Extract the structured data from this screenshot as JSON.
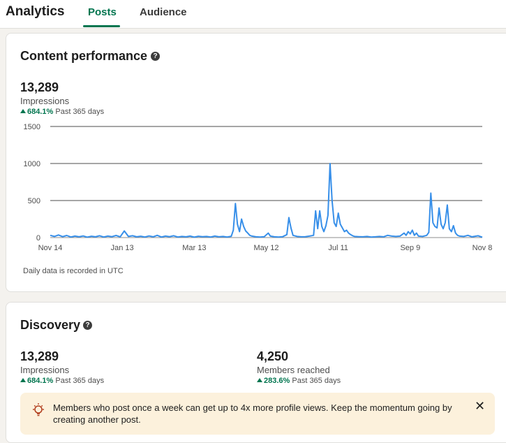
{
  "header": {
    "title": "Analytics",
    "tabs": [
      {
        "label": "Posts",
        "selected": true
      },
      {
        "label": "Audience",
        "selected": false
      }
    ]
  },
  "content_performance": {
    "title": "Content performance",
    "help_icon": "question-circle-icon",
    "impressions_value": "13,289",
    "impressions_label": "Impressions",
    "change_percent": "684.1%",
    "change_period": "Past 365 days",
    "footnote": "Daily data is recorded in UTC"
  },
  "chart_data": {
    "type": "line",
    "title": "",
    "xlabel": "",
    "ylabel": "",
    "ylim": [
      0,
      1500
    ],
    "y_ticks": [
      "1500",
      "1000",
      "500",
      "0"
    ],
    "x_ticks": [
      "Nov 14",
      "Jan 13",
      "Mar 13",
      "May 12",
      "Jul 11",
      "Sep 9",
      "Nov 8"
    ],
    "grid": true,
    "series": [
      {
        "color": "#378fe9",
        "points": [
          [
            0,
            30
          ],
          [
            4,
            15
          ],
          [
            8,
            35
          ],
          [
            12,
            12
          ],
          [
            16,
            28
          ],
          [
            20,
            8
          ],
          [
            24,
            20
          ],
          [
            28,
            10
          ],
          [
            32,
            22
          ],
          [
            36,
            6
          ],
          [
            40,
            18
          ],
          [
            44,
            10
          ],
          [
            48,
            25
          ],
          [
            52,
            8
          ],
          [
            56,
            20
          ],
          [
            60,
            12
          ],
          [
            64,
            28
          ],
          [
            68,
            10
          ],
          [
            72,
            90
          ],
          [
            76,
            15
          ],
          [
            80,
            25
          ],
          [
            84,
            10
          ],
          [
            88,
            18
          ],
          [
            92,
            8
          ],
          [
            96,
            22
          ],
          [
            100,
            10
          ],
          [
            104,
            30
          ],
          [
            108,
            8
          ],
          [
            112,
            20
          ],
          [
            116,
            12
          ],
          [
            120,
            25
          ],
          [
            124,
            8
          ],
          [
            128,
            15
          ],
          [
            132,
            10
          ],
          [
            136,
            20
          ],
          [
            140,
            6
          ],
          [
            144,
            18
          ],
          [
            148,
            12
          ],
          [
            152,
            15
          ],
          [
            156,
            8
          ],
          [
            160,
            20
          ],
          [
            164,
            10
          ],
          [
            168,
            15
          ],
          [
            172,
            8
          ],
          [
            176,
            18
          ],
          [
            178,
            100
          ],
          [
            180,
            460
          ],
          [
            182,
            180
          ],
          [
            184,
            80
          ],
          [
            186,
            250
          ],
          [
            188,
            150
          ],
          [
            190,
            90
          ],
          [
            192,
            60
          ],
          [
            194,
            30
          ],
          [
            196,
            20
          ],
          [
            198,
            15
          ],
          [
            200,
            10
          ],
          [
            204,
            8
          ],
          [
            208,
            12
          ],
          [
            212,
            60
          ],
          [
            214,
            20
          ],
          [
            218,
            10
          ],
          [
            222,
            8
          ],
          [
            226,
            12
          ],
          [
            230,
            40
          ],
          [
            232,
            270
          ],
          [
            234,
            130
          ],
          [
            236,
            30
          ],
          [
            240,
            15
          ],
          [
            244,
            10
          ],
          [
            248,
            12
          ],
          [
            252,
            20
          ],
          [
            256,
            30
          ],
          [
            258,
            360
          ],
          [
            260,
            120
          ],
          [
            262,
            360
          ],
          [
            264,
            150
          ],
          [
            266,
            80
          ],
          [
            268,
            160
          ],
          [
            270,
            300
          ],
          [
            272,
            1000
          ],
          [
            274,
            500
          ],
          [
            276,
            200
          ],
          [
            278,
            150
          ],
          [
            280,
            330
          ],
          [
            282,
            180
          ],
          [
            284,
            130
          ],
          [
            286,
            80
          ],
          [
            288,
            100
          ],
          [
            290,
            60
          ],
          [
            292,
            40
          ],
          [
            294,
            25
          ],
          [
            296,
            15
          ],
          [
            300,
            12
          ],
          [
            304,
            10
          ],
          [
            308,
            15
          ],
          [
            312,
            8
          ],
          [
            316,
            10
          ],
          [
            320,
            15
          ],
          [
            324,
            10
          ],
          [
            328,
            30
          ],
          [
            332,
            20
          ],
          [
            336,
            15
          ],
          [
            340,
            20
          ],
          [
            344,
            60
          ],
          [
            346,
            30
          ],
          [
            348,
            80
          ],
          [
            350,
            50
          ],
          [
            352,
            100
          ],
          [
            354,
            30
          ],
          [
            356,
            60
          ],
          [
            358,
            20
          ],
          [
            362,
            15
          ],
          [
            366,
            30
          ],
          [
            368,
            70
          ],
          [
            370,
            600
          ],
          [
            372,
            200
          ],
          [
            374,
            150
          ],
          [
            376,
            130
          ],
          [
            378,
            400
          ],
          [
            380,
            180
          ],
          [
            382,
            120
          ],
          [
            384,
            200
          ],
          [
            386,
            440
          ],
          [
            388,
            120
          ],
          [
            390,
            80
          ],
          [
            392,
            160
          ],
          [
            394,
            60
          ],
          [
            396,
            30
          ],
          [
            398,
            20
          ],
          [
            402,
            15
          ],
          [
            406,
            30
          ],
          [
            410,
            10
          ],
          [
            414,
            20
          ],
          [
            416,
            25
          ],
          [
            420,
            5
          ]
        ]
      }
    ]
  },
  "discovery": {
    "title": "Discovery",
    "help_icon": "question-circle-icon",
    "metrics": [
      {
        "value": "13,289",
        "label": "Impressions",
        "change_percent": "684.1%",
        "change_period": "Past 365 days"
      },
      {
        "value": "4,250",
        "label": "Members reached",
        "change_percent": "283.6%",
        "change_period": "Past 365 days"
      }
    ],
    "tip": {
      "icon": "lightbulb-icon",
      "text": "Members who post once a week can get up to 4x more profile views. Keep the momentum going by creating another post.",
      "close_icon": "close-icon"
    }
  }
}
